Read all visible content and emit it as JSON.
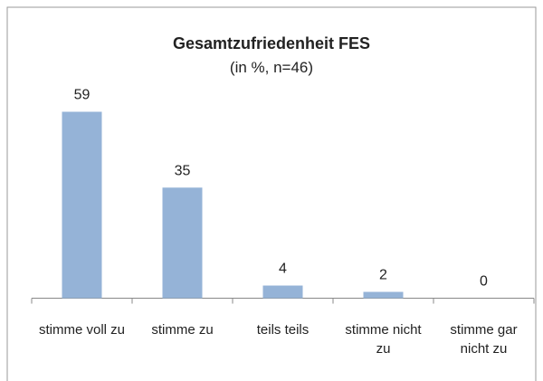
{
  "chart_data": {
    "type": "bar",
    "title": "Gesamtzufriedenheit FES",
    "subtitle": "(in %, n=46)",
    "categories": [
      "stimme voll zu",
      "stimme zu",
      "teils teils",
      "stimme nicht zu",
      "stimme gar nicht zu"
    ],
    "values": [
      59,
      35,
      4,
      2,
      0
    ],
    "color": "#95b3d7"
  }
}
